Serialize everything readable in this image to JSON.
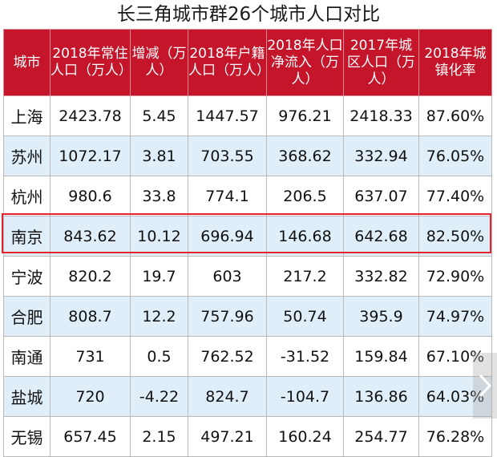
{
  "title": "长三角城市群26个城市人口对比",
  "columns": [
    "城市",
    "2018年常住人口（万人）",
    "增减（万人）",
    "2018年户籍人口（万人）",
    "2018年人口净流入（万人）",
    "2017年城区人口（万人）",
    "2018年城镇化率"
  ],
  "rows": [
    [
      "上海",
      "2423.78",
      "5.45",
      "1447.57",
      "976.21",
      "2418.33",
      "87.60%"
    ],
    [
      "苏州",
      "1072.17",
      "3.81",
      "703.55",
      "368.62",
      "332.94",
      "76.05%"
    ],
    [
      "杭州",
      "980.6",
      "33.8",
      "774.1",
      "206.5",
      "637.07",
      "77.40%"
    ],
    [
      "南京",
      "843.62",
      "10.12",
      "696.94",
      "146.68",
      "642.68",
      "82.50%"
    ],
    [
      "宁波",
      "820.2",
      "19.7",
      "603",
      "217.2",
      "332.82",
      "72.90%"
    ],
    [
      "合肥",
      "808.7",
      "12.2",
      "757.96",
      "50.74",
      "395.9",
      "74.97%"
    ],
    [
      "南通",
      "731",
      "0.5",
      "762.52",
      "-31.52",
      "159.84",
      "67.10%"
    ],
    [
      "盐城",
      "720",
      "-4.22",
      "824.7",
      "-104.7",
      "136.86",
      "64.03%"
    ],
    [
      "无锡",
      "657.45",
      "2.15",
      "497.21",
      "160.24",
      "254.77",
      "76.28%"
    ]
  ],
  "highlighted_row": "南京",
  "colors": {
    "header_bg": "#c4152b",
    "stripe": "#dfeef8",
    "highlight_border": "#e5232f"
  },
  "icons": {
    "next": "chevron-right-icon"
  }
}
